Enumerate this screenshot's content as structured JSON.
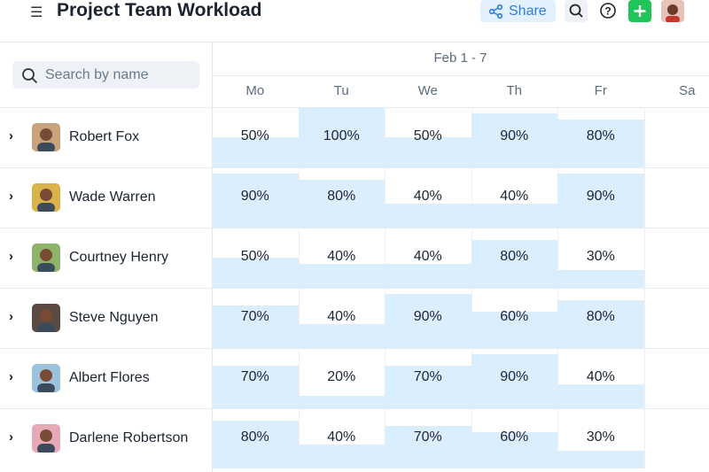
{
  "header": {
    "title": "Project Team Workload",
    "share": "Share"
  },
  "search": {
    "placeholder": "Search by name"
  },
  "table": {
    "week": "Feb 1 - 7",
    "days": [
      "Mo",
      "Tu",
      "We",
      "Th",
      "Fr",
      "Sa"
    ],
    "rows": [
      {
        "name": "Robert Fox",
        "values": [
          50,
          100,
          50,
          90,
          80
        ],
        "value_labels": [
          "50%",
          "100%",
          "50%",
          "90%",
          "80%"
        ]
      },
      {
        "name": "Wade Warren",
        "values": [
          90,
          80,
          40,
          40,
          90
        ],
        "value_labels": [
          "90%",
          "80%",
          "40%",
          "40%",
          "90%"
        ]
      },
      {
        "name": "Courtney Henry",
        "values": [
          50,
          40,
          40,
          80,
          30
        ],
        "value_labels": [
          "50%",
          "40%",
          "40%",
          "80%",
          "30%"
        ]
      },
      {
        "name": "Steve Nguyen",
        "values": [
          70,
          40,
          90,
          60,
          80
        ],
        "value_labels": [
          "70%",
          "40%",
          "90%",
          "60%",
          "80%"
        ]
      },
      {
        "name": "Albert Flores",
        "values": [
          70,
          20,
          70,
          90,
          40
        ],
        "value_labels": [
          "70%",
          "20%",
          "70%",
          "90%",
          "40%"
        ]
      },
      {
        "name": "Darlene Robertson",
        "values": [
          80,
          40,
          70,
          60,
          30
        ],
        "value_labels": [
          "80%",
          "40%",
          "70%",
          "60%",
          "30%"
        ]
      }
    ]
  }
}
